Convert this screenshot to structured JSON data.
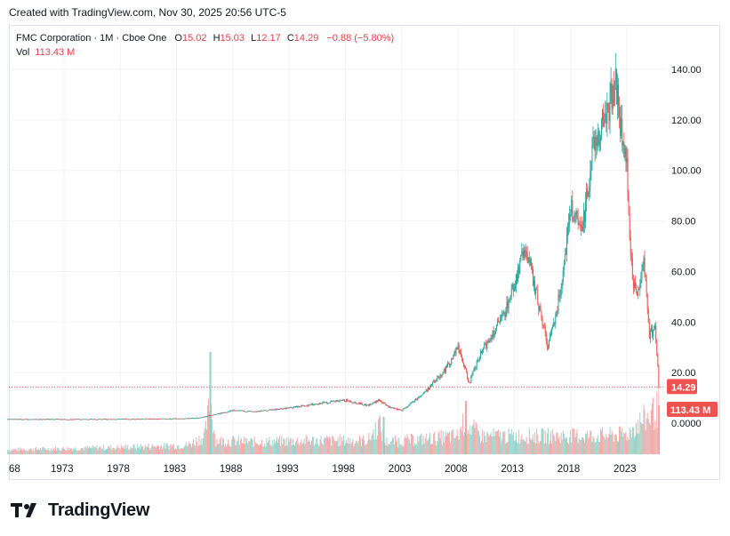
{
  "header": {
    "created": "Created with TradingView.com, Nov 30, 2025 20:56 UTC-5"
  },
  "legend": {
    "symbol": "FMC Corporation · 1M · Cboe One",
    "o_label": "O",
    "o_value": "15.02",
    "h_label": "H",
    "h_value": "15.03",
    "l_label": "L",
    "l_value": "12.17",
    "c_label": "C",
    "c_value": "14.29",
    "change": "−0.88 (−5.80%)",
    "vol_label": "Vol",
    "vol_value": "113.43 M"
  },
  "brand": {
    "name": "TradingView"
  },
  "colors": {
    "up": "#26a69a",
    "down": "#ef5350",
    "vol_up": "#8fd0c8",
    "vol_down": "#f2a3a1",
    "grid": "#f0f3fa",
    "text": "#131722"
  },
  "chart_data": {
    "type": "candlestick",
    "title": "FMC Corporation · 1M · Cboe One",
    "x_ticks": [
      "68",
      "1973",
      "1978",
      "1983",
      "1988",
      "1993",
      "1998",
      "2003",
      "2008",
      "2013",
      "2018",
      "2023"
    ],
    "y_ticks": [
      "140.00",
      "120.00",
      "100.00",
      "80.00",
      "60.00",
      "40.00",
      "20.00",
      "0.0000"
    ],
    "ylim": [
      0,
      140
    ],
    "last_price_label": "14.29",
    "last_volume_label": "113.43 M",
    "price_series": {
      "x": [
        1968,
        1973,
        1978,
        1983,
        1985,
        1986,
        1987,
        1988,
        1990,
        1993,
        1996,
        1998,
        2000,
        2001,
        2002,
        2003,
        2005,
        2007,
        2008,
        2009,
        2010,
        2011,
        2012,
        2013,
        2014,
        2015,
        2016,
        2017,
        2018,
        2019,
        2020,
        2021,
        2022,
        2022.5,
        2023,
        2023.5,
        2024,
        2024.5,
        2025,
        2025.5,
        2025.9
      ],
      "y": [
        1.5,
        1.5,
        1.6,
        1.7,
        2,
        3,
        4,
        5,
        4.5,
        6,
        8,
        9,
        7,
        9,
        6,
        5,
        12,
        22,
        30,
        16,
        27,
        35,
        42,
        55,
        70,
        50,
        30,
        50,
        85,
        75,
        110,
        120,
        135,
        115,
        100,
        55,
        52,
        66,
        35,
        38,
        14.29
      ]
    },
    "volume_series": {
      "note": "relative monthly volume",
      "x": [
        1968,
        1975,
        1980,
        1984,
        1985.5,
        1986,
        1986.5,
        1990,
        1995,
        2000,
        2001,
        2001.5,
        2005,
        2008,
        2008.5,
        2010,
        2015,
        2020,
        2023,
        2024,
        2025,
        2025.9
      ],
      "y": [
        3,
        4,
        5,
        6,
        12,
        35,
        9,
        8,
        9,
        9,
        20,
        8,
        10,
        12,
        22,
        12,
        12,
        12,
        13,
        20,
        25,
        30
      ]
    }
  }
}
